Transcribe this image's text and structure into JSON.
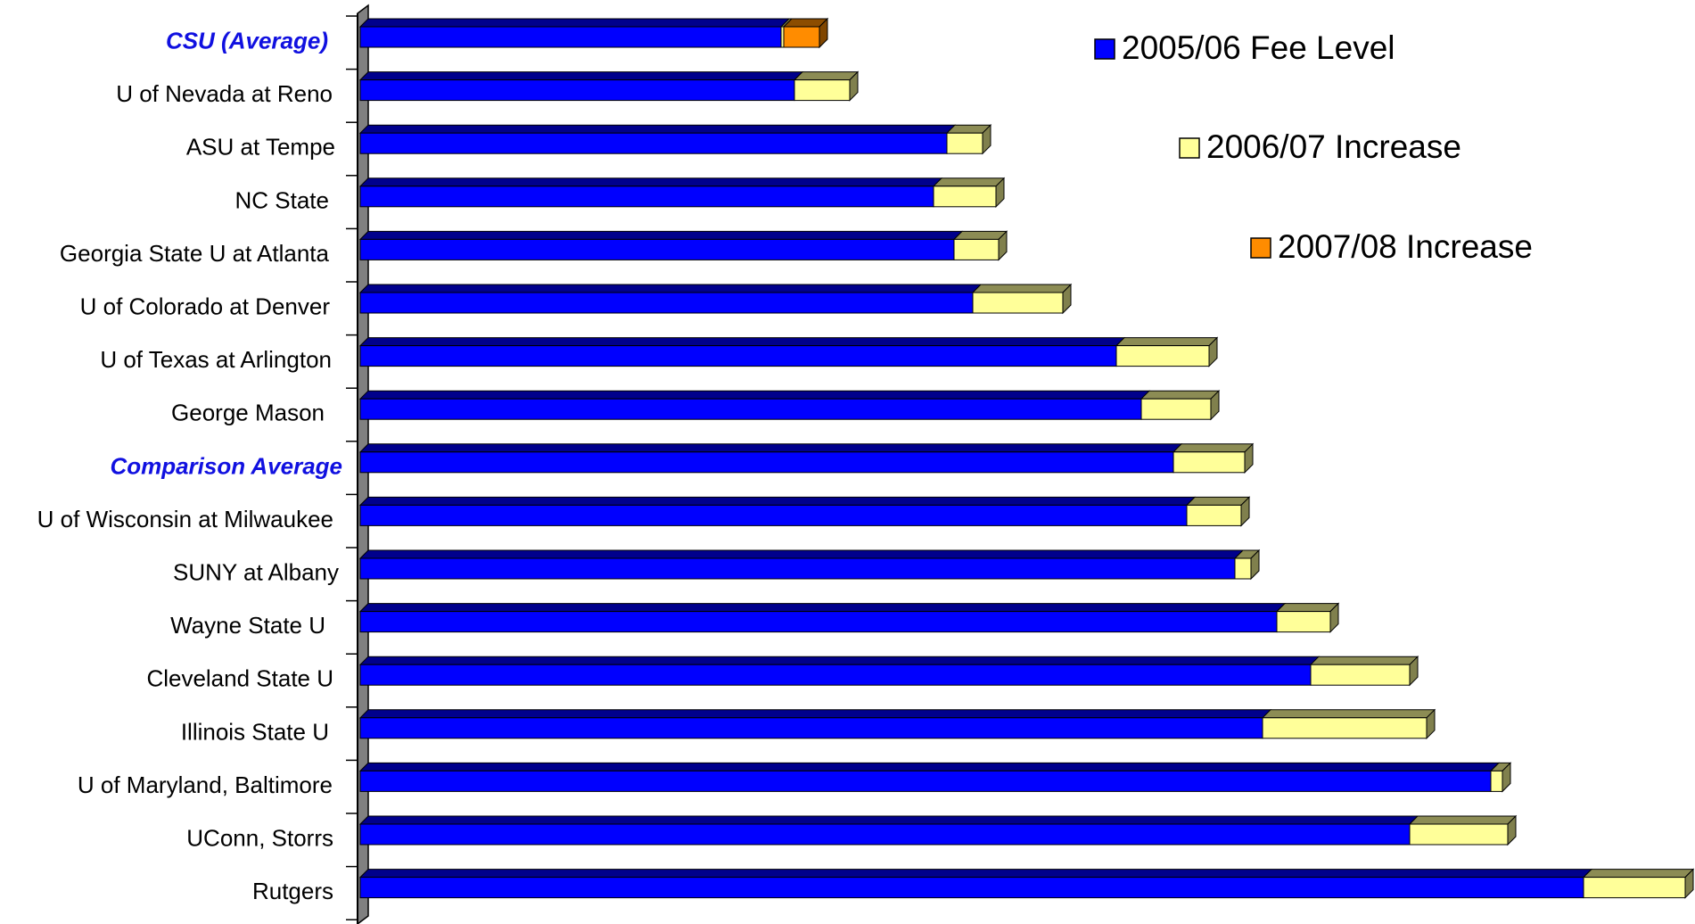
{
  "chart_data": {
    "type": "bar",
    "orientation": "horizontal",
    "stacked": true,
    "style": "3d",
    "title": "",
    "xlabel": "",
    "ylabel": "",
    "grid": false,
    "legend_position": "top-right",
    "categories": [
      "CSU (Average)",
      "U of Nevada at Reno",
      "ASU at Tempe",
      "NC State",
      "Georgia State U at Atlanta",
      "U of Colorado at Denver",
      "U of Texas at Arlington",
      "George Mason",
      "Comparison Average",
      "U of Wisconsin at Milwaukee",
      "SUNY at Albany",
      "Wayne State U",
      "Cleveland State U",
      "Illinois State U",
      "U of Maryland, Baltimore",
      "UConn, Storrs",
      "Rutgers"
    ],
    "highlighted_categories": [
      "CSU (Average)",
      "Comparison Average"
    ],
    "series": [
      {
        "name": "2005/06 Fee Level",
        "color": "#0000ff",
        "values": [
          472,
          487,
          658,
          643,
          666,
          687,
          848,
          876,
          912,
          927,
          981,
          1028,
          1066,
          1012,
          1268,
          1177,
          1372
        ]
      },
      {
        "name": "2006/07 Increase",
        "color": "#ffff99",
        "values": [
          3,
          62,
          40,
          70,
          50,
          101,
          104,
          78,
          80,
          61,
          18,
          60,
          111,
          184,
          13,
          110,
          114
        ]
      },
      {
        "name": "2007/08 Increase",
        "color": "#ff8c00",
        "values": [
          40,
          0,
          0,
          0,
          0,
          0,
          0,
          0,
          0,
          0,
          0,
          0,
          0,
          0,
          0,
          0,
          0
        ]
      }
    ],
    "xlim": [
      0,
      1500
    ]
  }
}
